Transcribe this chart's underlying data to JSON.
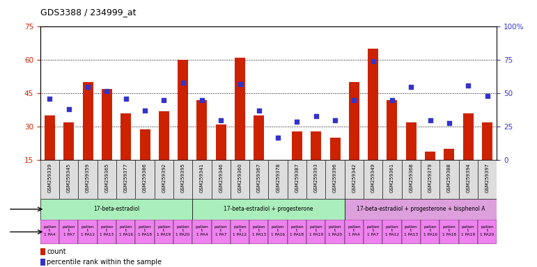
{
  "title": "GDS3388 / 234999_at",
  "gsm_labels": [
    "GSM259339",
    "GSM259345",
    "GSM259359",
    "GSM259365",
    "GSM259377",
    "GSM259386",
    "GSM259392",
    "GSM259395",
    "GSM259341",
    "GSM259346",
    "GSM259360",
    "GSM259367",
    "GSM259378",
    "GSM259387",
    "GSM259393",
    "GSM259396",
    "GSM259342",
    "GSM259349",
    "GSM259361",
    "GSM259368",
    "GSM259379",
    "GSM259388",
    "GSM259394",
    "GSM259397"
  ],
  "counts": [
    35,
    32,
    50,
    47,
    36,
    29,
    37,
    60,
    42,
    31,
    61,
    35,
    15,
    28,
    28,
    25,
    50,
    65,
    42,
    32,
    19,
    20,
    36,
    32
  ],
  "percentiles": [
    46,
    38,
    55,
    52,
    46,
    37,
    45,
    58,
    45,
    30,
    57,
    37,
    17,
    29,
    33,
    30,
    45,
    74,
    45,
    55,
    30,
    28,
    56,
    48
  ],
  "bar_color": "#CC2200",
  "dot_color": "#3333CC",
  "agent_groups": [
    {
      "label": "17-beta-estradiol",
      "start": 0,
      "end": 8,
      "color": "#AAEEBB"
    },
    {
      "label": "17-beta-estradiol + progesterone",
      "start": 8,
      "end": 16,
      "color": "#AAEEBB"
    },
    {
      "label": "17-beta-estradiol + progesterone + bisphenol A",
      "start": 16,
      "end": 24,
      "color": "#DDA0DD"
    }
  ],
  "ylim_left": [
    15,
    75
  ],
  "ylim_right": [
    0,
    100
  ],
  "yticks_left": [
    15,
    30,
    45,
    60,
    75
  ],
  "yticks_right": [
    0,
    25,
    50,
    75,
    100
  ],
  "ytick_labels_right": [
    "0",
    "25",
    "50",
    "75",
    "100%"
  ],
  "indiv_labels_line1": [
    "patien",
    "patien",
    "patien",
    "patien",
    "patien",
    "patien",
    "patien",
    "patien",
    "patien",
    "patien",
    "patien",
    "patien",
    "patien",
    "patien",
    "patien",
    "patien",
    "patien",
    "patien",
    "patien",
    "patien",
    "patien",
    "patien",
    "patien",
    "patien"
  ],
  "indiv_labels_line2": [
    "t",
    "t",
    "t",
    "t",
    "t",
    "t",
    "t",
    "t",
    "t",
    "t",
    "t",
    "t",
    "t",
    "t",
    "t",
    "t",
    "t",
    "t",
    "t",
    "t",
    "t",
    "t",
    "t",
    "t"
  ],
  "indiv_labels_line3": [
    "1 PA4",
    "1 PA7",
    "1 PA12",
    "1 PA13",
    "1 PA16",
    "1 PA18",
    "1 PA19",
    "1 PA20",
    "1 PA4",
    "1 PA7",
    "1 PA12",
    "1 PA13",
    "1 PA16",
    "1 PA18",
    "1 PA19",
    "1 PA20",
    "1 PA4",
    "1 PA7",
    "1 PA12",
    "1 PA13",
    "1 PA16",
    "1 PA18",
    "1 PA19",
    "1 PA20"
  ],
  "gsm_bg_color": "#DDDDDD",
  "indiv_color": "#EE82EE",
  "fig_width": 7.71,
  "fig_height": 3.84,
  "dpi": 100
}
